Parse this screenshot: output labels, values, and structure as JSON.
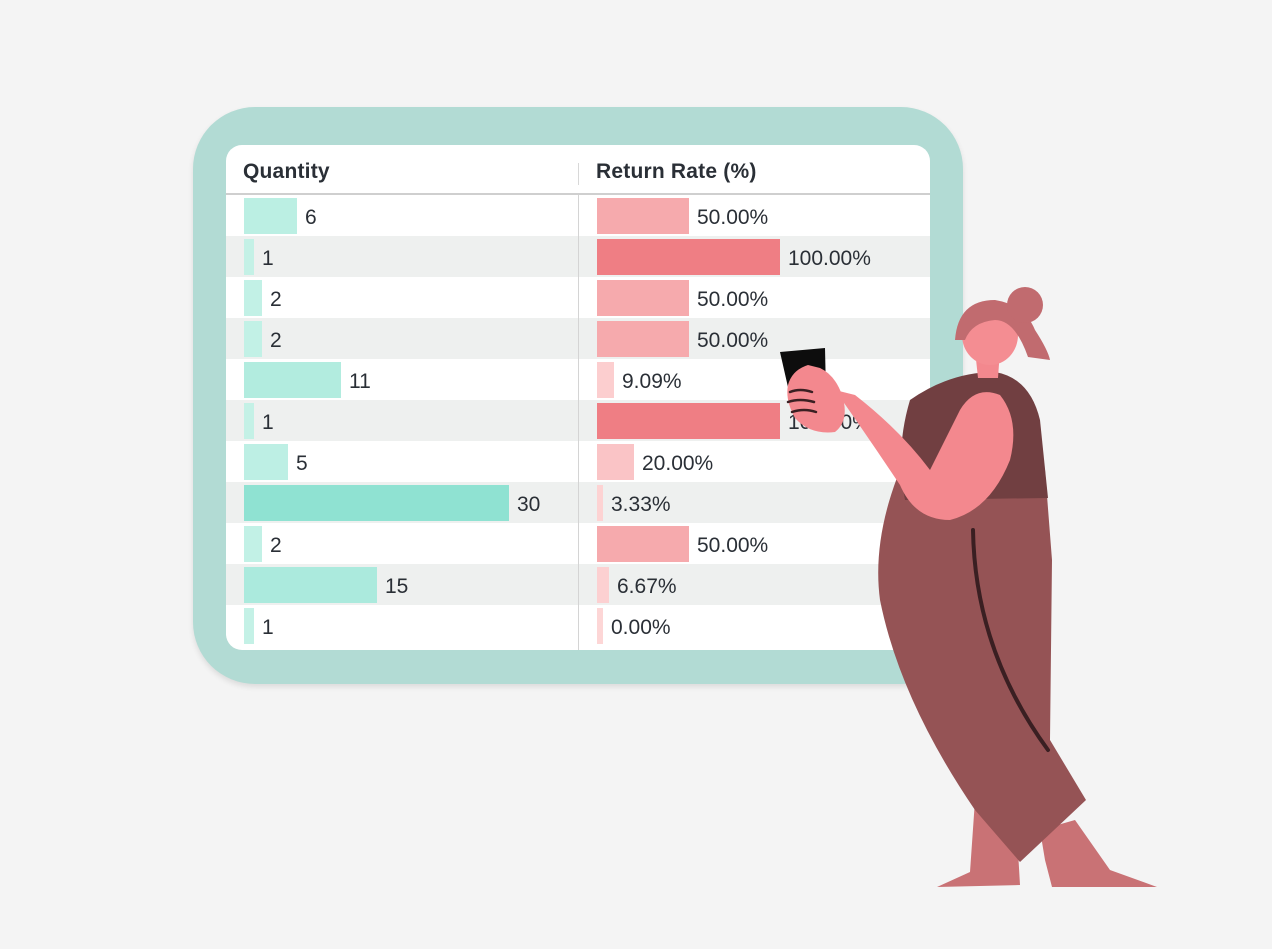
{
  "table": {
    "headers": {
      "quantity": "Quantity",
      "return_rate": "Return Rate (%)"
    },
    "rows": [
      {
        "quantity": 6,
        "quantity_label": "6",
        "return_rate": 50.0,
        "return_label": "50.00%"
      },
      {
        "quantity": 1,
        "quantity_label": "1",
        "return_rate": 100.0,
        "return_label": "100.00%"
      },
      {
        "quantity": 2,
        "quantity_label": "2",
        "return_rate": 50.0,
        "return_label": "50.00%"
      },
      {
        "quantity": 2,
        "quantity_label": "2",
        "return_rate": 50.0,
        "return_label": "50.00%"
      },
      {
        "quantity": 11,
        "quantity_label": "11",
        "return_rate": 9.09,
        "return_label": "9.09%"
      },
      {
        "quantity": 1,
        "quantity_label": "1",
        "return_rate": 100.0,
        "return_label": "100.00%"
      },
      {
        "quantity": 5,
        "quantity_label": "5",
        "return_rate": 20.0,
        "return_label": "20.00%"
      },
      {
        "quantity": 30,
        "quantity_label": "30",
        "return_rate": 3.33,
        "return_label": "3.33%"
      },
      {
        "quantity": 2,
        "quantity_label": "2",
        "return_rate": 50.0,
        "return_label": "50.00%"
      },
      {
        "quantity": 15,
        "quantity_label": "15",
        "return_rate": 6.67,
        "return_label": "6.67%"
      },
      {
        "quantity": 1,
        "quantity_label": "1",
        "return_rate": 0.0,
        "return_label": "0.00%"
      }
    ],
    "quantity_max": 30,
    "return_rate_max": 100
  },
  "colors": {
    "frame": "#b2dbd4",
    "quantity_bar_light": "#c6f2e7",
    "quantity_bar_dark": "#8fe2d2",
    "rate_bar_light": "#fdd6d6",
    "rate_bar_dark": "#ef7e84",
    "row_alt": "#eef0ef"
  },
  "illustration": {
    "icon": "person-holding-phone-icon"
  }
}
